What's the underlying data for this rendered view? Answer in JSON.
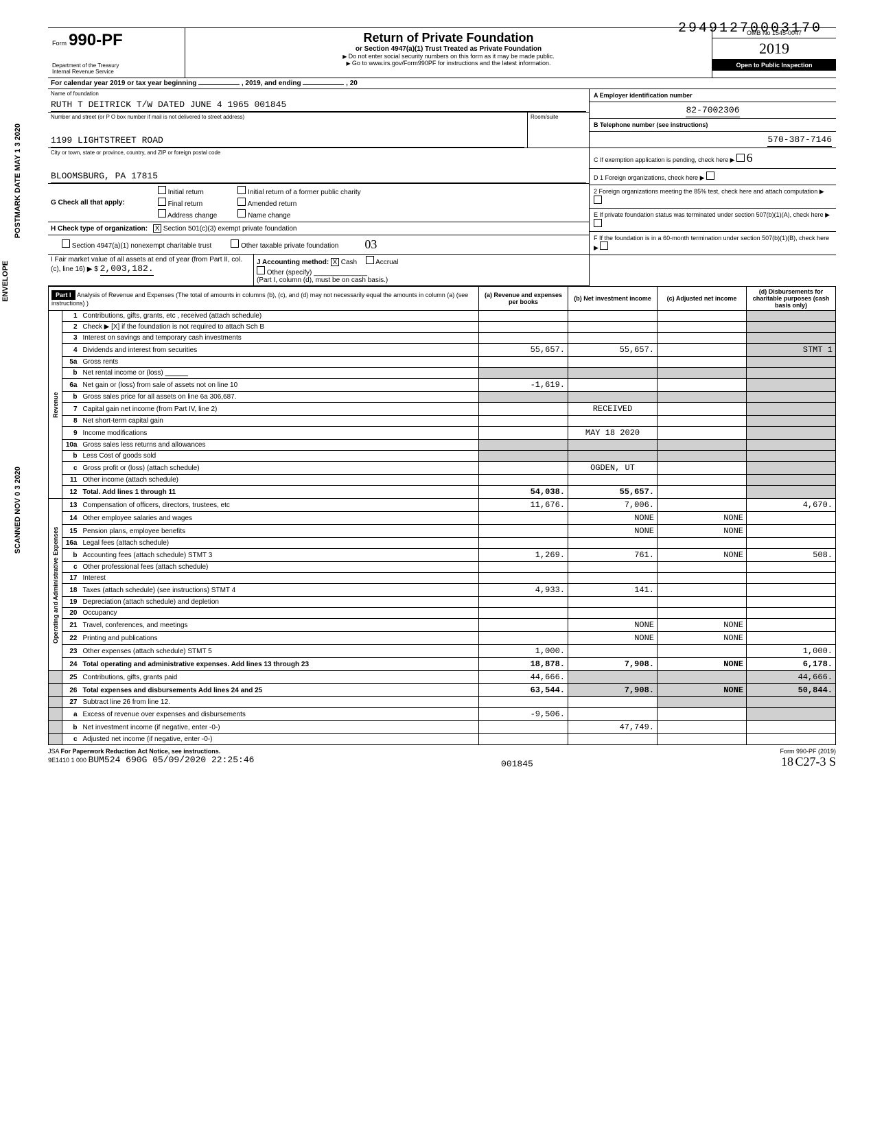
{
  "top_number": "29491270003170",
  "form": {
    "label": "Form",
    "number": "990-PF",
    "dept1": "Department of the Treasury",
    "dept2": "Internal Revenue Service"
  },
  "title": {
    "main": "Return of Private Foundation",
    "sub": "or Section 4947(a)(1) Trust Treated as Private Foundation",
    "note1": "Do not enter social security numbers on this form as it may be made public.",
    "note2": "Go to www.irs.gov/Form990PF for instructions and the latest information."
  },
  "yearbox": {
    "omb": "OMB No 1545-0047",
    "year": "2019",
    "open": "Open to Public Inspection"
  },
  "calendar": "For calendar year 2019 or tax year beginning",
  "calendar_mid": ", 2019, and ending",
  "calendar_end": ", 20",
  "foundation": {
    "name_label": "Name of foundation",
    "name": "RUTH T DEITRICK T/W DATED JUNE 4 1965 001845",
    "addr_label": "Number and street (or P O  box number if mail is not delivered to street address)",
    "addr": "1199 LIGHTSTREET ROAD",
    "city_label": "City or town, state or province, country, and ZIP or foreign postal code",
    "city": "BLOOMSBURG, PA 17815",
    "room_label": "Room/suite"
  },
  "right_info": {
    "a_label": "A   Employer identification number",
    "a_val": "82-7002306",
    "b_label": "B   Telephone number (see instructions)",
    "b_val": "570-387-7146",
    "c_label": "C   If exemption application is pending, check here",
    "d1": "D  1  Foreign organizations, check here",
    "d2": "2  Foreign organizations meeting the 85% test, check here and attach computation",
    "e": "E   If private foundation status was terminated under section 507(b)(1)(A), check here",
    "f": "F   If the foundation is in a 60-month termination under section 507(b)(1)(B), check here"
  },
  "g_label": "G  Check all that apply:",
  "g_opts": [
    "Initial return",
    "Initial return of a former public charity",
    "Final return",
    "Amended return",
    "Address change",
    "Name change"
  ],
  "h_label": "H  Check type of organization:",
  "h_opts": [
    "Section 501(c)(3) exempt private foundation",
    "Section 4947(a)(1) nonexempt charitable trust",
    "Other taxable private foundation"
  ],
  "i_label": "I   Fair  market  value  of  all  assets  at end of year  (from Part II, col. (c), line 16)",
  "i_val": "2,003,182.",
  "j_label": "J  Accounting method:",
  "j_opts": [
    "Cash",
    "Accrual",
    "Other (specify)"
  ],
  "j_note": "(Part I, column (d), must be on cash basis.)",
  "part1": {
    "header": "Part I",
    "title": "Analysis of Revenue and Expenses (The total of amounts in columns (b), (c), and (d) may not necessarily equal the amounts in column (a) (see instructions) )",
    "cols": [
      "(a) Revenue and expenses per books",
      "(b) Net investment income",
      "(c) Adjusted net income",
      "(d) Disbursements for charitable purposes (cash basis only)"
    ]
  },
  "rows": [
    {
      "n": "1",
      "desc": "Contributions, gifts, grants, etc , received (attach schedule)"
    },
    {
      "n": "2",
      "desc": "Check ▶ [X] if the foundation is not required to attach Sch B"
    },
    {
      "n": "3",
      "desc": "Interest on savings and temporary cash investments"
    },
    {
      "n": "4",
      "desc": "Dividends and interest from securities",
      "a": "55,657.",
      "b": "55,657.",
      "d": "STMT 1"
    },
    {
      "n": "5a",
      "desc": "Gross rents"
    },
    {
      "n": "b",
      "desc": "Net rental income or (loss) ______"
    },
    {
      "n": "6a",
      "desc": "Net gain or (loss) from sale of assets not on line 10",
      "a": "-1,619."
    },
    {
      "n": "b",
      "desc": "Gross sales price for all assets on line 6a        306,687."
    },
    {
      "n": "7",
      "desc": "Capital gain net income (from Part IV, line 2)",
      "b_stamp": "RECEIVED"
    },
    {
      "n": "8",
      "desc": "Net short-term capital gain"
    },
    {
      "n": "9",
      "desc": "Income modifications",
      "b_stamp": "MAY 18 2020"
    },
    {
      "n": "10a",
      "desc": "Gross sales less returns and allowances"
    },
    {
      "n": "b",
      "desc": "Less Cost of goods sold"
    },
    {
      "n": "c",
      "desc": "Gross profit or (loss) (attach schedule)",
      "b_stamp": "OGDEN, UT"
    },
    {
      "n": "11",
      "desc": "Other income (attach schedule)"
    },
    {
      "n": "12",
      "desc": "Total. Add lines 1 through 11",
      "a": "54,038.",
      "b": "55,657.",
      "bold": true
    },
    {
      "n": "13",
      "desc": "Compensation of officers, directors, trustees, etc",
      "a": "11,676.",
      "b": "7,006.",
      "d": "4,670."
    },
    {
      "n": "14",
      "desc": "Other employee salaries and wages",
      "b": "NONE",
      "c": "NONE"
    },
    {
      "n": "15",
      "desc": "Pension plans, employee benefits",
      "b": "NONE",
      "c": "NONE"
    },
    {
      "n": "16a",
      "desc": "Legal fees (attach schedule)"
    },
    {
      "n": "b",
      "desc": "Accounting fees (attach schedule) STMT 3",
      "a": "1,269.",
      "b": "761.",
      "c": "NONE",
      "d": "508."
    },
    {
      "n": "c",
      "desc": "Other professional fees (attach schedule)"
    },
    {
      "n": "17",
      "desc": "Interest"
    },
    {
      "n": "18",
      "desc": "Taxes (attach schedule) (see instructions) STMT 4",
      "a": "4,933.",
      "b": "141."
    },
    {
      "n": "19",
      "desc": "Depreciation (attach schedule) and depletion"
    },
    {
      "n": "20",
      "desc": "Occupancy"
    },
    {
      "n": "21",
      "desc": "Travel, conferences, and meetings",
      "b": "NONE",
      "c": "NONE"
    },
    {
      "n": "22",
      "desc": "Printing and publications",
      "b": "NONE",
      "c": "NONE"
    },
    {
      "n": "23",
      "desc": "Other expenses (attach schedule) STMT 5",
      "a": "1,000.",
      "d": "1,000."
    },
    {
      "n": "24",
      "desc": "Total operating and administrative expenses. Add lines 13 through 23",
      "a": "18,878.",
      "b": "7,908.",
      "c": "NONE",
      "d": "6,178.",
      "bold": true
    },
    {
      "n": "25",
      "desc": "Contributions, gifts, grants paid",
      "a": "44,666.",
      "d": "44,666."
    },
    {
      "n": "26",
      "desc": "Total expenses and disbursements  Add lines 24 and 25",
      "a": "63,544.",
      "b": "7,908.",
      "c": "NONE",
      "d": "50,844.",
      "bold": true
    },
    {
      "n": "27",
      "desc": "Subtract line 26 from line 12."
    },
    {
      "n": "a",
      "desc": "Excess of revenue over expenses and disbursements",
      "a": "-9,506."
    },
    {
      "n": "b",
      "desc": "Net investment income (if negative, enter -0-)",
      "b": "47,749."
    },
    {
      "n": "c",
      "desc": "Adjusted net income (if negative, enter -0-)"
    }
  ],
  "vert_labels": {
    "rev": "Revenue",
    "exp": "Operating and Administrative Expenses"
  },
  "footer": {
    "jsa": "JSA",
    "paperwork": "For Paperwork Reduction Act Notice, see instructions.",
    "code": "9E1410 1 000",
    "batch": "BUM524 690G 05/09/2020 22:25:46",
    "mid": "001845",
    "form": "Form 990-PF (2019)",
    "hand1": "18",
    "hand2": "C27-3    S"
  },
  "side": {
    "postmark": "POSTMARK DATE  MAY 1 3 2020",
    "envelope": "ENVELOPE",
    "scanned": "SCANNED NOV 0 3 2020"
  }
}
